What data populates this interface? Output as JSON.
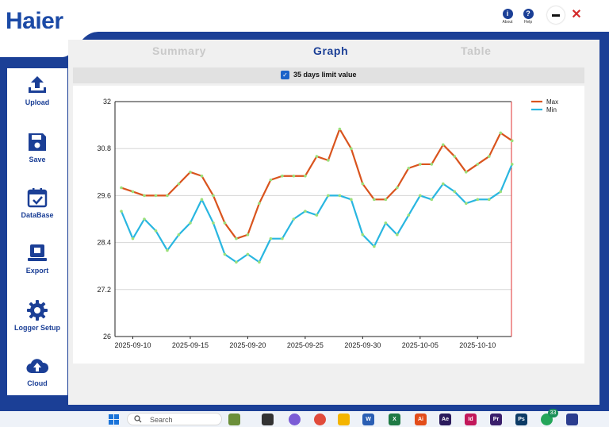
{
  "header": {
    "brand": "Haier",
    "about_label": "About",
    "help_label": "Help",
    "close_glyph": "✕"
  },
  "tabs": [
    {
      "label": "Summary",
      "active": false
    },
    {
      "label": "Graph",
      "active": true
    },
    {
      "label": "Table",
      "active": false
    }
  ],
  "options": {
    "limit_label": "35 days limit value",
    "limit_checked": true
  },
  "sidebar": {
    "items": [
      {
        "label": "Upload",
        "icon": "upload-icon"
      },
      {
        "label": "Save",
        "icon": "floppy-disk-icon"
      },
      {
        "label": "DataBase",
        "icon": "calendar-icon"
      },
      {
        "label": "Export",
        "icon": "export-icon"
      },
      {
        "label": "Logger Setup",
        "icon": "gear-icon"
      },
      {
        "label": "Cloud",
        "icon": "cloud-upload-icon"
      }
    ]
  },
  "chart_data": {
    "type": "line",
    "x_ticks": [
      "2025-09-10",
      "2025-09-15",
      "2025-09-20",
      "2025-09-25",
      "2025-09-30",
      "2025-10-05",
      "2025-10-10"
    ],
    "x_start": "2025-09-09",
    "y_ticks": [
      "26",
      "27.2",
      "28.4",
      "29.6",
      "30.8",
      "32"
    ],
    "ylim": [
      26,
      32
    ],
    "legend_position": "top-right",
    "series": [
      {
        "name": "Max",
        "color": "#d9541e",
        "values": [
          29.8,
          29.7,
          29.6,
          29.6,
          29.6,
          29.9,
          30.2,
          30.1,
          29.6,
          28.9,
          28.5,
          28.6,
          29.4,
          30.0,
          30.1,
          30.1,
          30.1,
          30.6,
          30.5,
          31.3,
          30.8,
          29.9,
          29.5,
          29.5,
          29.8,
          30.3,
          30.4,
          30.4,
          30.9,
          30.6,
          30.2,
          30.4,
          30.6,
          31.2,
          31.0
        ]
      },
      {
        "name": "Min",
        "color": "#29b6e0",
        "values": [
          29.2,
          28.5,
          29.0,
          28.7,
          28.2,
          28.6,
          28.9,
          29.5,
          28.9,
          28.1,
          27.9,
          28.1,
          27.9,
          28.5,
          28.5,
          29.0,
          29.2,
          29.1,
          29.6,
          29.6,
          29.5,
          28.6,
          28.3,
          28.9,
          28.6,
          29.1,
          29.6,
          29.5,
          29.9,
          29.7,
          29.4,
          29.5,
          29.5,
          29.7,
          30.4
        ]
      }
    ]
  },
  "taskbar": {
    "search_placeholder": "Search",
    "notification_count": "33"
  }
}
